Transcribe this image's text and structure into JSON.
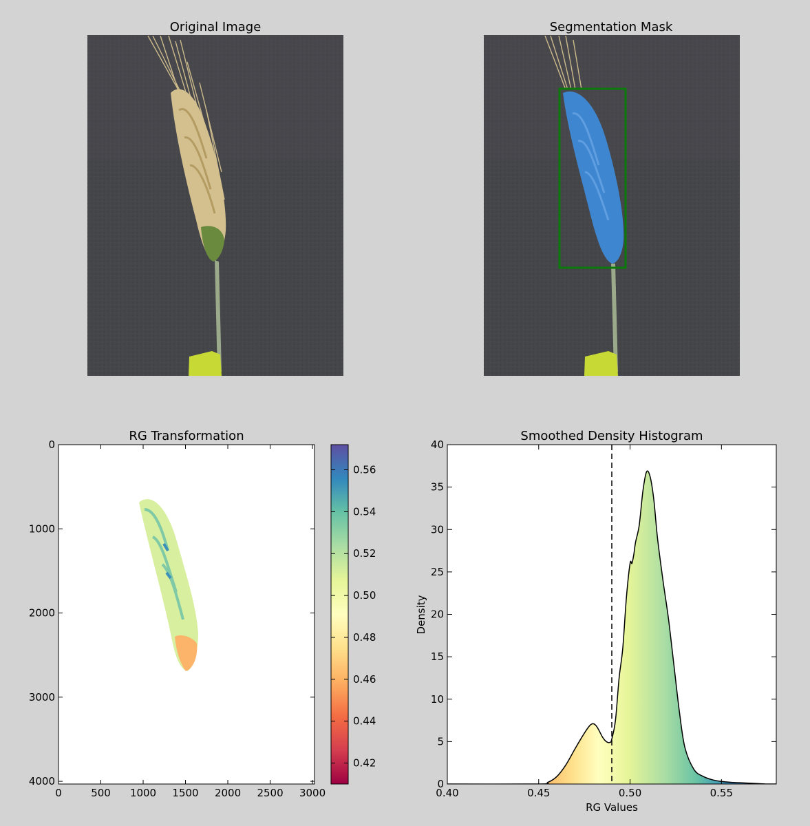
{
  "panels": {
    "original": {
      "title": "Original Image"
    },
    "mask": {
      "title": "Segmentation Mask"
    },
    "rg": {
      "title": "RG Transformation"
    },
    "hist": {
      "title": "Smoothed Density Histogram"
    }
  },
  "colors": {
    "figure_bg": "#d3d3d3",
    "photo_bg": "#45464a",
    "mask_fill": "#3f86d0",
    "bbox": "#0b7a0b",
    "wheat": "#d3c08e",
    "clip": "#c7d935"
  },
  "chart_data": [
    {
      "type": "heatmap",
      "title": "RG Transformation",
      "xlim": [
        0,
        3024
      ],
      "ylim": [
        4032,
        0
      ],
      "xticks": [
        0,
        500,
        1000,
        1500,
        2000,
        2500,
        3000
      ],
      "yticks": [
        0,
        1000,
        2000,
        3000,
        4000
      ],
      "colormap": "Spectral",
      "colorbar": {
        "range": [
          0.41,
          0.572
        ],
        "ticks": [
          "0.42",
          "0.44",
          "0.46",
          "0.48",
          "0.50",
          "0.52",
          "0.54",
          "0.56"
        ]
      },
      "grid": false
    },
    {
      "type": "area",
      "title": "Smoothed Density Histogram",
      "xlabel": "RG Values",
      "ylabel": "Density",
      "xlim": [
        0.4,
        0.58
      ],
      "ylim": [
        0,
        40
      ],
      "xticks": [
        "0.40",
        "0.45",
        "0.50",
        "0.55"
      ],
      "yticks": [
        "0",
        "5",
        "10",
        "15",
        "20",
        "25",
        "30",
        "35",
        "40"
      ],
      "threshold": 0.49,
      "grid": false,
      "x": [
        0.4,
        0.45,
        0.455,
        0.46,
        0.465,
        0.47,
        0.475,
        0.478,
        0.48,
        0.482,
        0.485,
        0.487,
        0.489,
        0.49,
        0.492,
        0.494,
        0.496,
        0.498,
        0.5,
        0.501,
        0.502,
        0.503,
        0.505,
        0.507,
        0.509,
        0.511,
        0.513,
        0.515,
        0.518,
        0.521,
        0.524,
        0.527,
        0.53,
        0.535,
        0.54,
        0.545,
        0.55,
        0.555,
        0.56,
        0.565,
        0.57,
        0.575,
        0.58
      ],
      "y": [
        0,
        0,
        0.2,
        0.9,
        2.3,
        4.2,
        6.0,
        6.9,
        7.1,
        6.7,
        5.5,
        5.0,
        4.9,
        5.3,
        7.5,
        12.5,
        16.0,
        22.0,
        26.0,
        26.0,
        27.0,
        28.5,
        30.5,
        34.5,
        36.8,
        36.2,
        33.5,
        29.0,
        24.0,
        19.5,
        14.0,
        8.5,
        4.3,
        1.7,
        0.9,
        0.5,
        0.3,
        0.2,
        0.15,
        0.1,
        0.05,
        0,
        0
      ]
    }
  ]
}
